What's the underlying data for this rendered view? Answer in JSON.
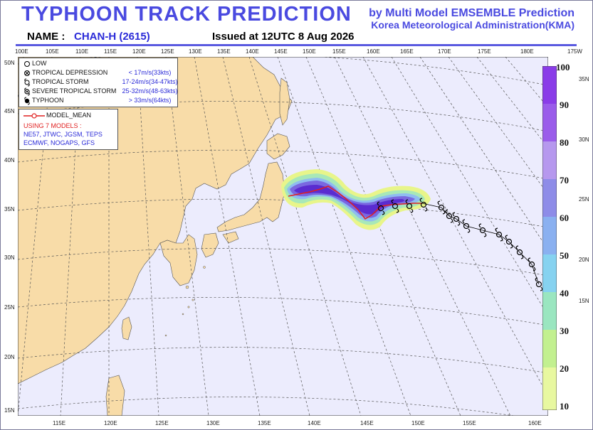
{
  "title": "TYPHOON  TRACK  PREDICTION",
  "subtitle1": "by Multi Model EMSEMBLE Prediction",
  "subtitle2": "Korea Meteorological Administration(KMA)",
  "name_label": "NAME :",
  "name_value": "CHAN-H (2615)",
  "issued": "Issued at  12UTC  8 Aug 2026",
  "legend": {
    "items": [
      {
        "label": "LOW",
        "value": "",
        "icon": "circle-icon"
      },
      {
        "label": "TROPICAL DEPRESSION",
        "value": "< 17m/s(33kts)",
        "icon": "crossed-circle-icon"
      },
      {
        "label": "TROPICAL STORM",
        "value": "17-24m/s(34-47kts)",
        "icon": "tropical-storm-icon"
      },
      {
        "label": "SEVERE TROPICAL STORM",
        "value": "25-32m/s(48-63kts)",
        "icon": "severe-storm-icon"
      },
      {
        "label": "TYPHOON",
        "value": "> 33m/s(64kts)",
        "icon": "typhoon-icon"
      }
    ],
    "model_mean": "MODEL_MEAN",
    "using": "USING 7 MODELS :",
    "models1": "NE57, JTWC, JGSM, TEPS",
    "models2": "ECMWF, NOGAPS, GFS"
  },
  "top_lon_labels": [
    "100E",
    "105E",
    "110E",
    "115E",
    "120E",
    "125E",
    "130E",
    "135E",
    "140E",
    "145E",
    "150E",
    "155E",
    "160E",
    "165E",
    "170E",
    "175E",
    "180E",
    "175W"
  ],
  "bottom_lon_labels": [
    "115E",
    "120E",
    "125E",
    "130E",
    "135E",
    "140E",
    "145E",
    "150E",
    "155E",
    "160E"
  ],
  "left_lat_labels": [
    "50N",
    "45N",
    "40N",
    "35N",
    "30N",
    "25N",
    "20N",
    "15N"
  ],
  "right_lat_labels": [
    "35N",
    "30N",
    "25N",
    "20N",
    "15N"
  ],
  "probability_scale": [
    "100",
    "90",
    "80",
    "70",
    "60",
    "50",
    "40",
    "30",
    "20",
    "10"
  ],
  "colors": {
    "title": "#4a4ae0",
    "land": "#f8dca8",
    "sea": "#ececfd",
    "track": "#e02020"
  }
}
